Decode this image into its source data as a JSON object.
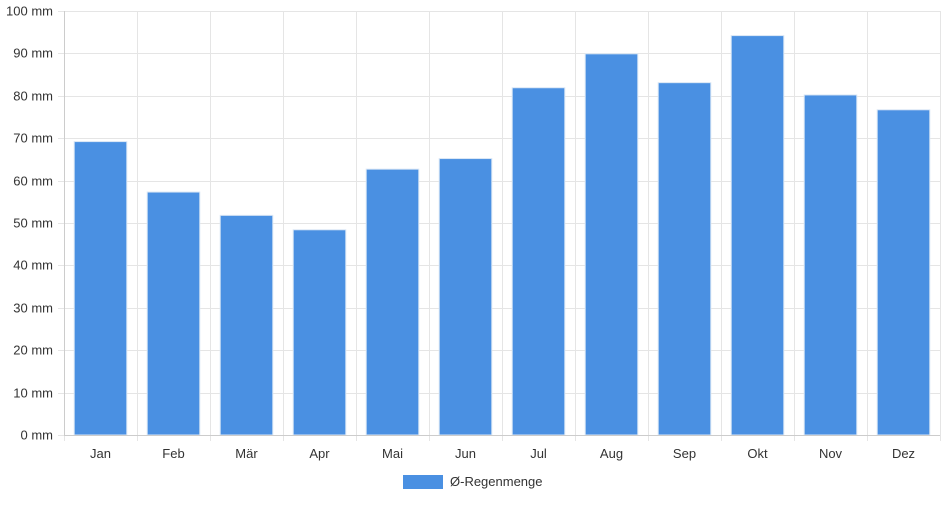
{
  "chart_data": {
    "type": "bar",
    "categories": [
      "Jan",
      "Feb",
      "Mär",
      "Apr",
      "Mai",
      "Jun",
      "Jul",
      "Aug",
      "Sep",
      "Okt",
      "Nov",
      "Dez"
    ],
    "series": [
      {
        "name": "Ø-Regenmenge",
        "color": "#4a90e2",
        "values": [
          69.2,
          57.3,
          51.8,
          48.4,
          62.7,
          65.2,
          81.9,
          89.9,
          83.1,
          94.2,
          80.2,
          76.7
        ]
      }
    ],
    "title": "",
    "xlabel": "",
    "ylabel": "",
    "ylim": [
      0,
      100
    ],
    "yticks": [
      0,
      10,
      20,
      30,
      40,
      50,
      60,
      70,
      80,
      90,
      100
    ],
    "y_unit": "mm",
    "grid": true,
    "legend_position": "bottom-center"
  }
}
